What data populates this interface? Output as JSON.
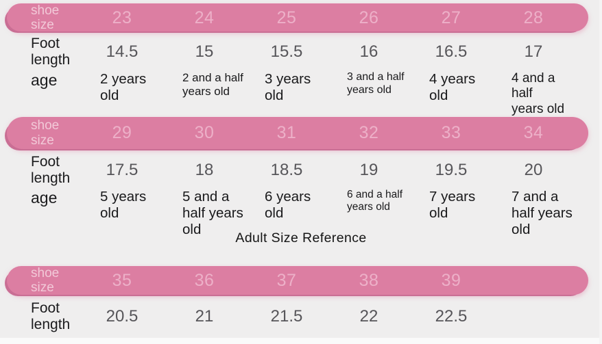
{
  "page": {
    "background": "#efeeee",
    "bar_color": "#dc7ea2",
    "bar_shadow_color": "#c96e94",
    "bar_number_color": "#edb0c8",
    "bar_label_color": "#f2c9d8",
    "value_color": "#565559",
    "text_color": "#1b1b1d"
  },
  "adult_title": "Adult Size Reference",
  "sections": [
    {
      "header_label": "shoe size",
      "sizes": [
        "23",
        "24",
        "25",
        "26",
        "27",
        "28"
      ],
      "foot_label": "Foot\nlength",
      "foot_lengths": [
        "14.5",
        "15",
        "15.5",
        "16",
        "16.5",
        "17"
      ],
      "age_label": "age",
      "ages": [
        "2 years\nold",
        "2 and a half\nyears old",
        "3 years\nold",
        "3 and a half\nyears old",
        "4 years\nold",
        "4 and a half\nyears old"
      ]
    },
    {
      "header_label": "shoe\nsize",
      "sizes": [
        "29",
        "30",
        "31",
        "32",
        "33",
        "34"
      ],
      "foot_label": "Foot\nlength",
      "foot_lengths": [
        "17.5",
        "18",
        "18.5",
        "19",
        "19.5",
        "20"
      ],
      "age_label": "age",
      "ages": [
        "5 years\nold",
        "5 and a\nhalf years\nold",
        "6 years\nold",
        "6 and a half\nyears old",
        "7 years\nold",
        "7 and a\nhalf years\nold"
      ]
    },
    {
      "header_label": "shoe size",
      "sizes": [
        "35",
        "36",
        "37",
        "38",
        "39"
      ],
      "foot_label": "Foot\nlength",
      "foot_lengths": [
        "20.5",
        "21",
        "21.5",
        "22",
        "22.5"
      ]
    }
  ]
}
